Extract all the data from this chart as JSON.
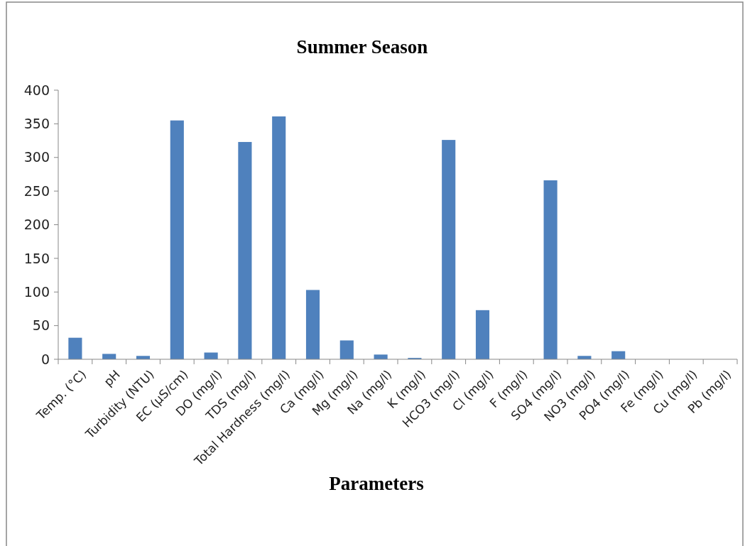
{
  "chart_data": {
    "type": "bar",
    "title": "Summer Season",
    "xlabel": "Parameters",
    "categories": [
      "Temp. (°C)",
      "pH",
      "Turbidity (NTU)",
      "EC (µS/cm)",
      "DO (mg/l)",
      "TDS (mg/l)",
      "Total Hardness (mg/l)",
      "Ca (mg/l)",
      "Mg (mg/l)",
      "Na (mg/l)",
      "K (mg/l)",
      "HCO3 (mg/l)",
      "Cl (mg/l)",
      "F (mg/l)",
      "SO4 (mg/l)",
      "NO3 (mg/l)",
      "PO4 (mg/l)",
      "Fe (mg/l)",
      "Cu (mg/l)",
      "Pb (mg/l)"
    ],
    "values": [
      32,
      8,
      5,
      355,
      10,
      323,
      361,
      103,
      28,
      7,
      2,
      326,
      73,
      0,
      266,
      5,
      12,
      0,
      0,
      0
    ],
    "color": "#4f81bd",
    "ylim": [
      0,
      400
    ],
    "yticks": [
      0,
      50,
      100,
      150,
      200,
      250,
      300,
      350,
      400
    ],
    "grid": false
  }
}
